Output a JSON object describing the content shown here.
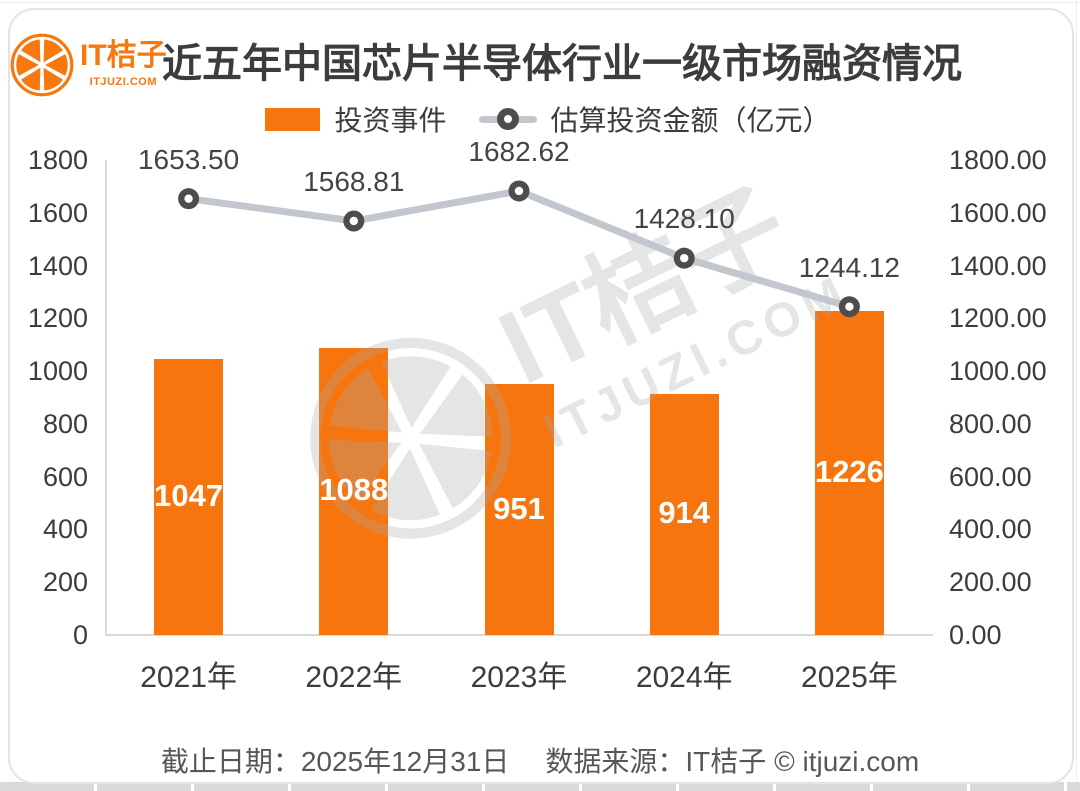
{
  "brand": {
    "name": "IT桔子",
    "domain": "ITJUZI.COM"
  },
  "title": "近五年中国芯片半导体行业一级市场融资情况",
  "legend": {
    "bar_label": "投资事件",
    "line_label": "估算投资金额（亿元）"
  },
  "chart_data": {
    "type": "bar+line",
    "title": "近五年中国芯片半导体行业一级市场融资情况",
    "categories": [
      "2021年",
      "2022年",
      "2023年",
      "2024年",
      "2025年"
    ],
    "series": [
      {
        "name": "投资事件",
        "type": "bar",
        "axis": "left",
        "values": [
          1047,
          1088,
          951,
          914,
          1226
        ]
      },
      {
        "name": "估算投资金额（亿元）",
        "type": "line",
        "axis": "right",
        "values": [
          1653.5,
          1568.81,
          1682.62,
          1428.1,
          1244.12
        ],
        "point_labels": [
          "1653.50",
          "1568.81",
          "1682.62",
          "1428.10",
          "1244.12"
        ]
      }
    ],
    "left_axis": {
      "min": 0,
      "max": 1800,
      "tick_step": 200,
      "ticks": [
        "1800",
        "1600",
        "1400",
        "1200",
        "1000",
        "800",
        "600",
        "400",
        "200",
        "0"
      ]
    },
    "right_axis": {
      "min": 0,
      "max": 1800,
      "tick_step": 200,
      "ticks": [
        "1800.00",
        "1600.00",
        "1400.00",
        "1200.00",
        "1000.00",
        "800.00",
        "600.00",
        "400.00",
        "200.00",
        "0.00"
      ]
    },
    "grid": false,
    "legend_position": "top",
    "bar_labels_inside": true
  },
  "watermark": {
    "name": "IT桔子",
    "domain": "ITJUZI.COM"
  },
  "footer": {
    "date": "截止日期：2025年12月31日",
    "source": "数据来源：IT桔子 © itjuzi.com"
  },
  "colors": {
    "bar": "#F7750E",
    "line": "#C1C7CD",
    "marker_ring": "#4D4D4D",
    "brand_orange": "#F7780F",
    "axis_line": "#DADADA",
    "text_dark": "#3C3C3C",
    "text_gray": "#575757",
    "bar_label": "#FFFFFF"
  }
}
